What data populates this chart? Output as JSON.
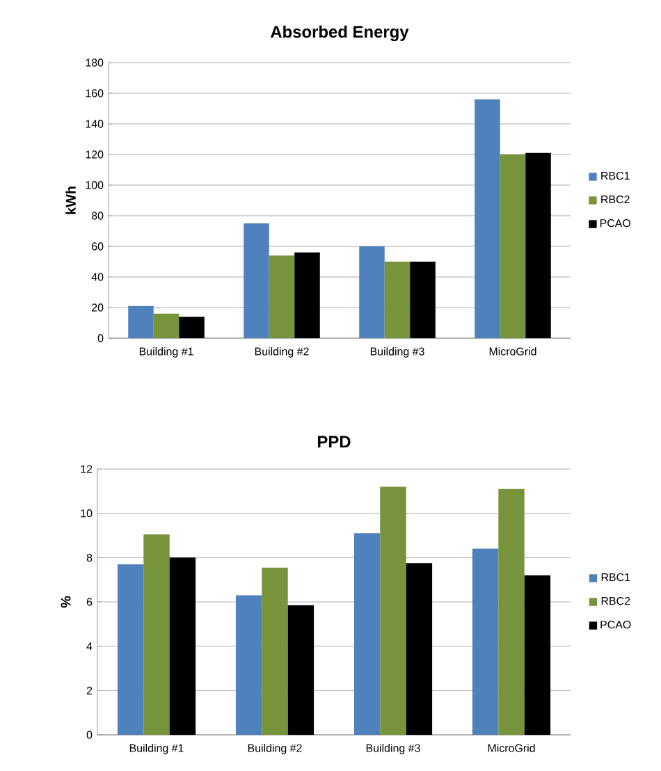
{
  "chart_data": [
    {
      "type": "bar",
      "title": "Absorbed Energy",
      "ylabel": "kWh",
      "categories": [
        "Building #1",
        "Building #2",
        "Building #3",
        "MicroGrid"
      ],
      "series": [
        {
          "name": "RBC1",
          "color": "#4f81bd",
          "values": [
            21,
            75,
            60,
            156
          ]
        },
        {
          "name": "RBC2",
          "color": "#77933c",
          "values": [
            16,
            54,
            50,
            120
          ]
        },
        {
          "name": "PCAO",
          "color": "#000000",
          "values": [
            14,
            56,
            50,
            121
          ]
        }
      ],
      "ylim": [
        0,
        180
      ],
      "yticks": [
        0,
        20,
        40,
        60,
        80,
        100,
        120,
        140,
        160,
        180
      ],
      "grid": "y",
      "legend": "right"
    },
    {
      "type": "bar",
      "title": "PPD",
      "ylabel": "%",
      "categories": [
        "Building #1",
        "Building #2",
        "Building #3",
        "MicroGrid"
      ],
      "series": [
        {
          "name": "RBC1",
          "color": "#4f81bd",
          "values": [
            7.7,
            6.3,
            9.1,
            8.4
          ]
        },
        {
          "name": "RBC2",
          "color": "#77933c",
          "values": [
            9.05,
            7.55,
            11.2,
            11.1
          ]
        },
        {
          "name": "PCAO",
          "color": "#000000",
          "values": [
            8.0,
            5.85,
            7.75,
            7.2
          ]
        }
      ],
      "ylim": [
        0,
        12
      ],
      "yticks": [
        0,
        2,
        4,
        6,
        8,
        10,
        12
      ],
      "grid": "y",
      "legend": "right"
    }
  ]
}
